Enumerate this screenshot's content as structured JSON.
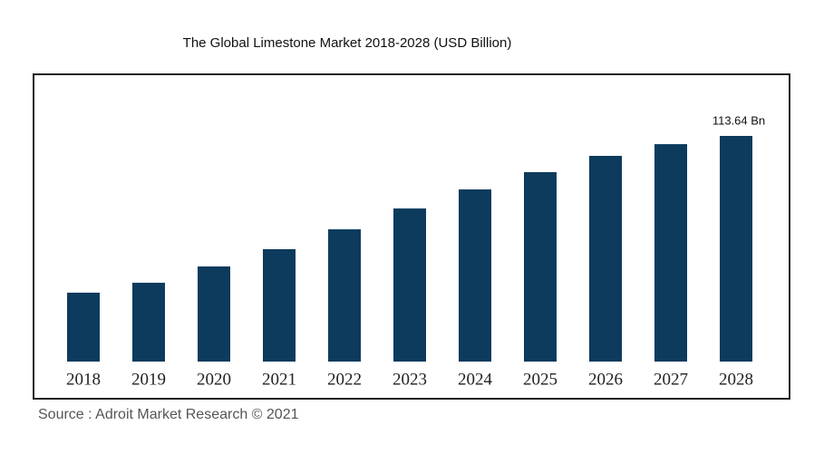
{
  "chart_data": {
    "type": "bar",
    "title": "The Global Limestone Market 2018-2028 (USD Billion)",
    "categories": [
      "2018",
      "2019",
      "2020",
      "2021",
      "2022",
      "2023",
      "2024",
      "2025",
      "2026",
      "2027",
      "2028"
    ],
    "values": [
      34.7,
      39.7,
      47.9,
      56.6,
      66.6,
      77.1,
      86.7,
      95.4,
      103.6,
      109.5,
      113.64
    ],
    "value_labels": [
      null,
      null,
      null,
      null,
      null,
      null,
      null,
      null,
      null,
      null,
      "113.64 Bn"
    ],
    "color": "#0c3b5d",
    "source": "Source : Adroit Market Research © 2021"
  }
}
